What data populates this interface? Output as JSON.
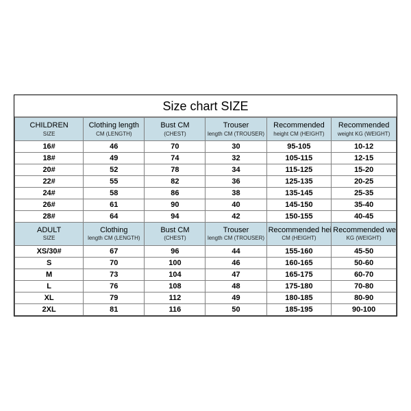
{
  "title": "Size chart SIZE",
  "children_headers": [
    {
      "main": "CHILDREN",
      "sub": "SIZE"
    },
    {
      "main": "Clothing length",
      "sub": "CM (LENGTH)"
    },
    {
      "main": "Bust CM",
      "sub": "(CHEST)"
    },
    {
      "main": "Trouser",
      "sub": "length CM (TROUSER)"
    },
    {
      "main": "Recommended",
      "sub": "height CM (HEIGHT)"
    },
    {
      "main": "Recommended",
      "sub": "weight KG (WEIGHT)"
    }
  ],
  "children_rows": [
    [
      "16#",
      "46",
      "70",
      "30",
      "95-105",
      "10-12"
    ],
    [
      "18#",
      "49",
      "74",
      "32",
      "105-115",
      "12-15"
    ],
    [
      "20#",
      "52",
      "78",
      "34",
      "115-125",
      "15-20"
    ],
    [
      "22#",
      "55",
      "82",
      "36",
      "125-135",
      "20-25"
    ],
    [
      "24#",
      "58",
      "86",
      "38",
      "135-145",
      "25-35"
    ],
    [
      "26#",
      "61",
      "90",
      "40",
      "145-150",
      "35-40"
    ],
    [
      "28#",
      "64",
      "94",
      "42",
      "150-155",
      "40-45"
    ]
  ],
  "adult_headers": [
    {
      "main": "ADULT",
      "sub": "SIZE"
    },
    {
      "main": "Clothing",
      "sub": "length CM (LENGTH)"
    },
    {
      "main": "Bust CM",
      "sub": "(CHEST)"
    },
    {
      "main": "Trouser",
      "sub": "length CM (TROUSER)"
    },
    {
      "main": "Recommended height",
      "sub": "CM (HEIGHT)"
    },
    {
      "main": "Recommended weight",
      "sub": "KG (WEIGHT)"
    }
  ],
  "adult_rows": [
    [
      "XS/30#",
      "67",
      "96",
      "44",
      "155-160",
      "45-50"
    ],
    [
      "S",
      "70",
      "100",
      "46",
      "160-165",
      "50-60"
    ],
    [
      "M",
      "73",
      "104",
      "47",
      "165-175",
      "60-70"
    ],
    [
      "L",
      "76",
      "108",
      "48",
      "175-180",
      "70-80"
    ],
    [
      "XL",
      "79",
      "112",
      "49",
      "180-185",
      "80-90"
    ],
    [
      "2XL",
      "81",
      "116",
      "50",
      "185-195",
      "90-100"
    ]
  ],
  "style": {
    "header_bg": "#c7dde6",
    "border_color": "#808080",
    "column_widths_pct": [
      18,
      16,
      16,
      16,
      17,
      17
    ]
  }
}
